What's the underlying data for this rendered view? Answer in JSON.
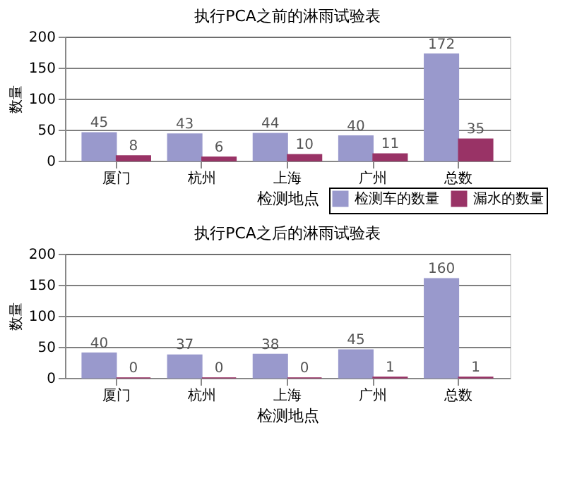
{
  "chart_data": [
    {
      "type": "bar",
      "title": "执行PCA之前的淋雨试验表",
      "xlabel": "检测地点",
      "ylabel": "数量",
      "categories": [
        "厦门",
        "杭州",
        "上海",
        "广州",
        "总数"
      ],
      "series": [
        {
          "name": "检测车的数量",
          "color": "#9999cc",
          "values": [
            45,
            43,
            44,
            40,
            172
          ]
        },
        {
          "name": "漏水的数量",
          "color": "#993366",
          "values": [
            8,
            6,
            10,
            11,
            35
          ]
        }
      ],
      "ylim": [
        0,
        200
      ],
      "yticks": [
        0,
        50,
        100,
        150,
        200
      ],
      "grid": "y",
      "legend": "bottom right",
      "data_labels": true
    },
    {
      "type": "bar",
      "title": "执行PCA之后的淋雨试验表",
      "xlabel": "检测地点",
      "ylabel": "数量",
      "categories": [
        "厦门",
        "杭州",
        "上海",
        "广州",
        "总数"
      ],
      "series": [
        {
          "name": "检测车的数量",
          "color": "#9999cc",
          "values": [
            40,
            37,
            38,
            45,
            160
          ]
        },
        {
          "name": "漏水的数量",
          "color": "#993366",
          "values": [
            0,
            0,
            0,
            1,
            1
          ]
        }
      ],
      "ylim": [
        0,
        200
      ],
      "yticks": [
        0,
        50,
        100,
        150,
        200
      ],
      "grid": "y",
      "legend": "bottom right",
      "data_labels": true
    }
  ]
}
